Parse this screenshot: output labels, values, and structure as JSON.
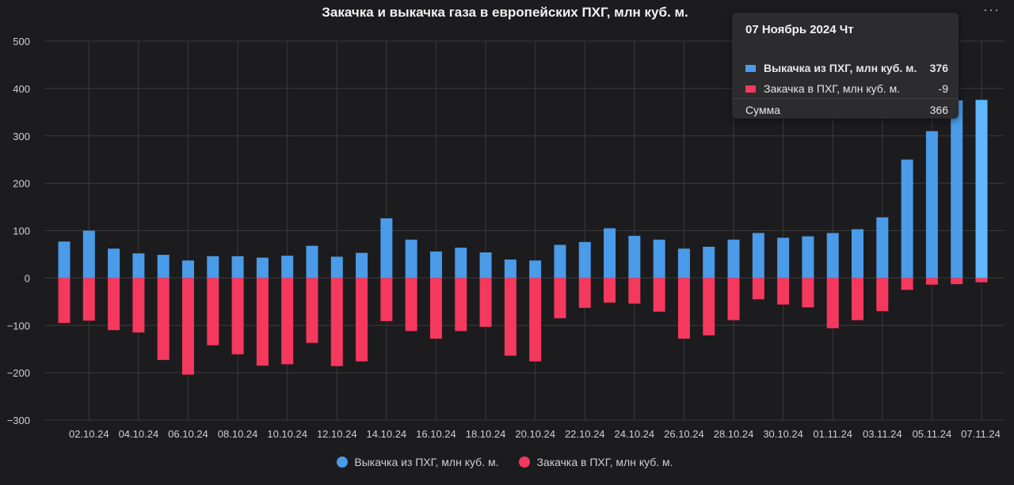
{
  "chart_data": {
    "type": "bar",
    "title": "Закачка и выкачка газа в европейских ПХГ, млн куб. м.",
    "ylim": [
      -300,
      500
    ],
    "yticks": [
      500,
      400,
      300,
      200,
      100,
      0,
      -100,
      -200,
      -300
    ],
    "ytick_labels": [
      "500",
      "400",
      "300",
      "200",
      "100",
      "0",
      "−100",
      "−200",
      "−300"
    ],
    "grid": true,
    "legend_position": "bottom",
    "categories": [
      "01.10.24",
      "02.10.24",
      "03.10.24",
      "04.10.24",
      "05.10.24",
      "06.10.24",
      "07.10.24",
      "08.10.24",
      "09.10.24",
      "10.10.24",
      "11.10.24",
      "12.10.24",
      "13.10.24",
      "14.10.24",
      "15.10.24",
      "16.10.24",
      "17.10.24",
      "18.10.24",
      "19.10.24",
      "20.10.24",
      "21.10.24",
      "22.10.24",
      "23.10.24",
      "24.10.24",
      "25.10.24",
      "26.10.24",
      "27.10.24",
      "28.10.24",
      "29.10.24",
      "30.10.24",
      "31.10.24",
      "01.11.24",
      "02.11.24",
      "03.11.24",
      "04.11.24",
      "05.11.24",
      "06.11.24",
      "07.11.24"
    ],
    "xtick_labels": [
      "02.10.24",
      "04.10.24",
      "06.10.24",
      "08.10.24",
      "10.10.24",
      "12.10.24",
      "14.10.24",
      "16.10.24",
      "18.10.24",
      "20.10.24",
      "22.10.24",
      "24.10.24",
      "26.10.24",
      "28.10.24",
      "30.10.24",
      "01.11.24",
      "03.11.24",
      "05.11.24",
      "07.11.24"
    ],
    "series": [
      {
        "name": "Выкачка из ПХГ, млн куб. м.",
        "color": "#4a9be8",
        "values": [
          77,
          100,
          62,
          52,
          49,
          37,
          46,
          46,
          43,
          47,
          68,
          45,
          53,
          126,
          81,
          56,
          64,
          54,
          39,
          37,
          70,
          76,
          105,
          89,
          81,
          62,
          66,
          81,
          95,
          85,
          88,
          95,
          103,
          128,
          250,
          310,
          375,
          376
        ]
      },
      {
        "name": "Закачка в ПХГ, млн куб. м.",
        "color": "#f5385e",
        "values": [
          -95,
          -90,
          -110,
          -115,
          -173,
          -204,
          -142,
          -161,
          -185,
          -182,
          -137,
          -186,
          -176,
          -91,
          -112,
          -128,
          -112,
          -103,
          -164,
          -176,
          -85,
          -63,
          -52,
          -54,
          -71,
          -128,
          -121,
          -89,
          -45,
          -56,
          -62,
          -106,
          -89,
          -70,
          -25,
          -14,
          -13,
          -9
        ]
      }
    ],
    "highlight_index": 37,
    "highlight_color": "#5fb7ff"
  },
  "tooltip": {
    "date": "07 Ноябрь 2024 Чт",
    "rows": [
      {
        "label": "Выкачка из ПХГ, млн куб. м.",
        "value": "376",
        "color": "#4a9be8",
        "bold": true
      },
      {
        "label": "Закачка в ПХГ, млн куб. м.",
        "value": "-9",
        "color": "#f5385e",
        "bold": false
      }
    ],
    "sum_label": "Сумма",
    "sum_value": "366"
  },
  "menu_icon": "more-horizontal-icon",
  "menu_glyph": "···"
}
